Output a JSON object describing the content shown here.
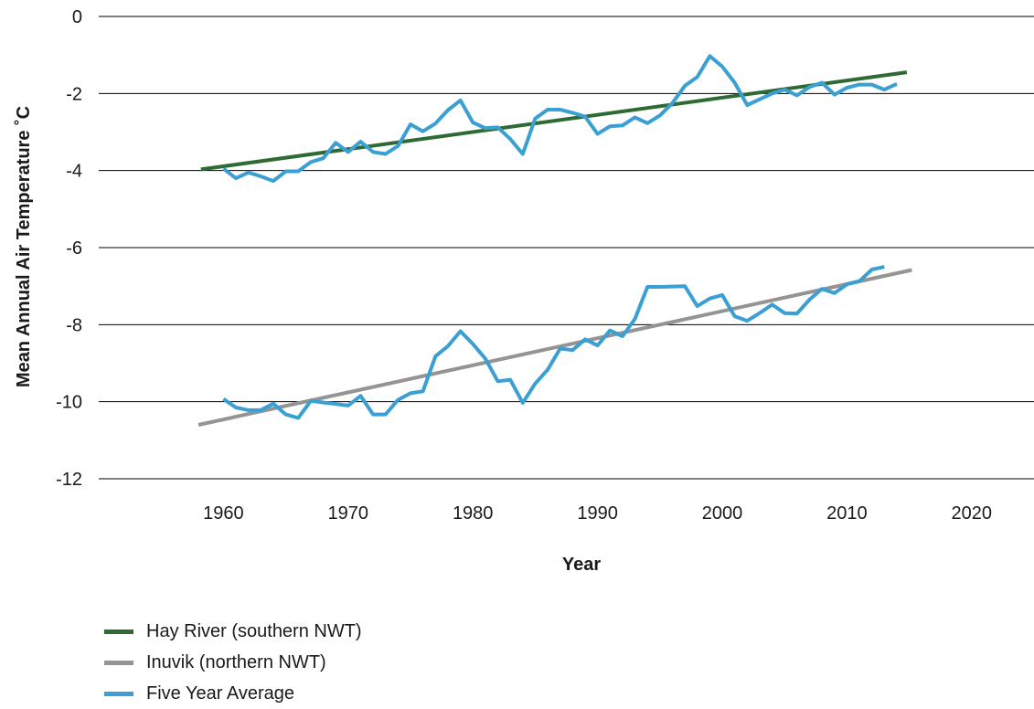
{
  "chart_data": {
    "type": "line",
    "title": "",
    "xlabel": "Year",
    "ylabel": "Mean Annual Air Temperature ˚C",
    "xlim": [
      1950,
      2025
    ],
    "ylim": [
      -12,
      0
    ],
    "xticks": [
      1960,
      1970,
      1980,
      1990,
      2000,
      2010,
      2020
    ],
    "yticks": [
      0,
      -2,
      -4,
      -6,
      -8,
      -10,
      -12
    ],
    "grid": "horizontal",
    "legend_position": "bottom-left",
    "series": [
      {
        "name": "Hay River (southern NWT)",
        "color": "#2e6b34",
        "x": [
          1958.2,
          2014.8
        ],
        "y": [
          -3.97,
          -1.45
        ]
      },
      {
        "name": "Inuvik (northern NWT)",
        "color": "#949494",
        "x": [
          1958,
          2015.2
        ],
        "y": [
          -10.6,
          -6.58
        ]
      },
      {
        "name": "Five Year Average",
        "color": "#3a9fd3",
        "x": [
          1960,
          1961,
          1962,
          1963,
          1964,
          1965,
          1966,
          1967,
          1968,
          1969,
          1970,
          1971,
          1972,
          1973,
          1974,
          1975,
          1976,
          1977,
          1978,
          1979,
          1980,
          1981,
          1982,
          1983,
          1984,
          1985,
          1986,
          1987,
          1988,
          1989,
          1990,
          1991,
          1992,
          1993,
          1994,
          1995,
          1996,
          1997,
          1998,
          1999,
          2000,
          2001,
          2002,
          2003,
          2004,
          2005,
          2006,
          2007,
          2008,
          2009,
          2010,
          2011,
          2012,
          2013,
          2014
        ],
        "y": [
          -3.95,
          -4.2,
          -4.05,
          -4.15,
          -4.27,
          -4.02,
          -4.02,
          -3.78,
          -3.68,
          -3.28,
          -3.52,
          -3.25,
          -3.52,
          -3.57,
          -3.36,
          -2.8,
          -2.98,
          -2.78,
          -2.43,
          -2.18,
          -2.75,
          -2.9,
          -2.88,
          -3.18,
          -3.57,
          -2.65,
          -2.42,
          -2.42,
          -2.5,
          -2.6,
          -3.05,
          -2.85,
          -2.83,
          -2.62,
          -2.77,
          -2.57,
          -2.25,
          -1.8,
          -1.57,
          -1.03,
          -1.3,
          -1.72,
          -2.3,
          -2.15,
          -2.0,
          -1.9,
          -2.05,
          -1.83,
          -1.72,
          -2.03,
          -1.85,
          -1.77,
          -1.77,
          -1.9,
          -1.75
        ]
      },
      {
        "name": "Five Year Average",
        "color": "#3a9fd3",
        "x": [
          1960,
          1961,
          1962,
          1963,
          1964,
          1965,
          1966,
          1967,
          1968,
          1969,
          1970,
          1971,
          1972,
          1973,
          1974,
          1975,
          1976,
          1977,
          1978,
          1979,
          1980,
          1981,
          1982,
          1983,
          1984,
          1985,
          1986,
          1987,
          1988,
          1989,
          1990,
          1991,
          1992,
          1993,
          1994,
          1995,
          1996,
          1997,
          1998,
          1999,
          2000,
          2001,
          2002,
          2003,
          2004,
          2005,
          2006,
          2007,
          2008,
          2009,
          2010,
          2011,
          2012,
          2013
        ],
        "y": [
          -9.93,
          -10.15,
          -10.22,
          -10.22,
          -10.05,
          -10.33,
          -10.42,
          -9.98,
          -10.02,
          -10.06,
          -10.1,
          -9.85,
          -10.33,
          -10.33,
          -9.95,
          -9.78,
          -9.73,
          -8.82,
          -8.56,
          -8.17,
          -8.5,
          -8.88,
          -9.47,
          -9.43,
          -10.03,
          -9.53,
          -9.17,
          -8.62,
          -8.66,
          -8.38,
          -8.54,
          -8.15,
          -8.3,
          -7.85,
          -7.02,
          -7.02,
          -7.01,
          -7.0,
          -7.52,
          -7.32,
          -7.23,
          -7.78,
          -7.9,
          -7.7,
          -7.48,
          -7.7,
          -7.71,
          -7.35,
          -7.07,
          -7.18,
          -6.95,
          -6.87,
          -6.57,
          -6.5
        ]
      }
    ]
  },
  "legend": [
    {
      "label": "Hay River (southern NWT)",
      "color": "#2e6b34"
    },
    {
      "label": "Inuvik (northern NWT)",
      "color": "#949494"
    },
    {
      "label": "Five Year Average",
      "color": "#3a9fd3"
    }
  ]
}
